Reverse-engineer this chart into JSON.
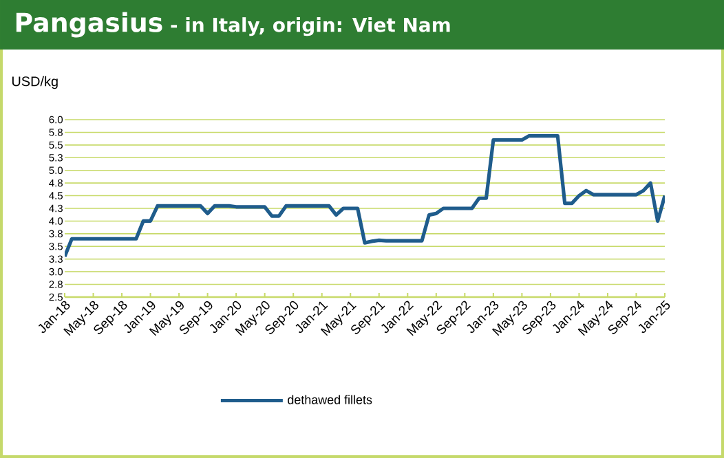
{
  "chart_data": {
    "type": "line",
    "title": "Pangasius",
    "subtitle": "- in Italy, origin: Viet Nam",
    "ylabel": "USD/kg",
    "x": [
      "2018-01",
      "2018-02",
      "2018-03",
      "2018-04",
      "2018-05",
      "2018-06",
      "2018-07",
      "2018-08",
      "2018-09",
      "2018-10",
      "2018-11",
      "2018-12",
      "2019-01",
      "2019-02",
      "2019-03",
      "2019-04",
      "2019-05",
      "2019-06",
      "2019-07",
      "2019-08",
      "2019-09",
      "2019-10",
      "2019-11",
      "2019-12",
      "2020-01",
      "2020-02",
      "2020-03",
      "2020-04",
      "2020-05",
      "2020-06",
      "2020-07",
      "2020-08",
      "2020-09",
      "2020-10",
      "2020-11",
      "2020-12",
      "2021-01",
      "2021-02",
      "2021-03",
      "2021-04",
      "2021-05",
      "2021-06",
      "2021-07",
      "2021-08",
      "2021-09",
      "2021-10",
      "2021-11",
      "2021-12",
      "2022-01",
      "2022-02",
      "2022-03",
      "2022-04",
      "2022-05",
      "2022-06",
      "2022-07",
      "2022-08",
      "2022-09",
      "2022-10",
      "2022-11",
      "2022-12",
      "2023-01",
      "2023-02",
      "2023-03",
      "2023-04",
      "2023-05",
      "2023-06",
      "2023-07",
      "2023-08",
      "2023-09",
      "2023-10",
      "2023-11",
      "2023-12",
      "2024-01",
      "2024-02",
      "2024-03",
      "2024-04",
      "2024-05",
      "2024-06",
      "2024-07",
      "2024-08",
      "2024-09",
      "2024-10",
      "2024-11",
      "2024-12",
      "2025-01"
    ],
    "series": [
      {
        "name": "dethawed fillets",
        "color": "#1f5c8c",
        "values": [
          3.3,
          3.65,
          3.65,
          3.65,
          3.65,
          3.65,
          3.65,
          3.65,
          3.65,
          3.65,
          3.65,
          4.0,
          4.0,
          4.3,
          4.3,
          4.3,
          4.3,
          4.3,
          4.3,
          4.3,
          4.15,
          4.3,
          4.3,
          4.3,
          4.28,
          4.28,
          4.28,
          4.28,
          4.28,
          4.1,
          4.1,
          4.3,
          4.3,
          4.3,
          4.3,
          4.3,
          4.3,
          4.3,
          4.12,
          4.25,
          4.25,
          4.25,
          3.57,
          3.6,
          3.62,
          3.61,
          3.61,
          3.61,
          3.61,
          3.61,
          3.61,
          4.12,
          4.15,
          4.25,
          4.25,
          4.25,
          4.25,
          4.25,
          4.45,
          4.45,
          5.6,
          5.6,
          5.6,
          5.6,
          5.6,
          5.68,
          5.68,
          5.68,
          5.68,
          5.68,
          4.35,
          4.35,
          4.5,
          4.6,
          4.52,
          4.52,
          4.52,
          4.52,
          4.52,
          4.52,
          4.52,
          4.6,
          4.75,
          4.0,
          4.5
        ]
      }
    ],
    "xlim": [
      "2018-01",
      "2025-01"
    ],
    "xticks": [
      {
        "value": "2018-01",
        "label": "Jan-18"
      },
      {
        "value": "2018-05",
        "label": "May-18"
      },
      {
        "value": "2018-09",
        "label": "Sep-18"
      },
      {
        "value": "2019-01",
        "label": "Jan-19"
      },
      {
        "value": "2019-05",
        "label": "May-19"
      },
      {
        "value": "2019-09",
        "label": "Sep-19"
      },
      {
        "value": "2020-01",
        "label": "Jan-20"
      },
      {
        "value": "2020-05",
        "label": "May-20"
      },
      {
        "value": "2020-09",
        "label": "Sep-20"
      },
      {
        "value": "2021-01",
        "label": "Jan-21"
      },
      {
        "value": "2021-05",
        "label": "May-21"
      },
      {
        "value": "2021-09",
        "label": "Sep-21"
      },
      {
        "value": "2022-01",
        "label": "Jan-22"
      },
      {
        "value": "2022-05",
        "label": "May-22"
      },
      {
        "value": "2022-09",
        "label": "Sep-22"
      },
      {
        "value": "2023-01",
        "label": "Jan-23"
      },
      {
        "value": "2023-05",
        "label": "May-23"
      },
      {
        "value": "2023-09",
        "label": "Sep-23"
      },
      {
        "value": "2024-01",
        "label": "Jan-24"
      },
      {
        "value": "2024-05",
        "label": "May-24"
      },
      {
        "value": "2024-09",
        "label": "Sep-24"
      },
      {
        "value": "2025-01",
        "label": "Jan-25"
      }
    ],
    "ylim": [
      2.5,
      6.0
    ],
    "yticks": [
      {
        "value": 2.5,
        "label": "2.5"
      },
      {
        "value": 2.75,
        "label": "2.8"
      },
      {
        "value": 3.0,
        "label": "3.0"
      },
      {
        "value": 3.25,
        "label": "3.3"
      },
      {
        "value": 3.5,
        "label": "3.5"
      },
      {
        "value": 3.75,
        "label": "3.8"
      },
      {
        "value": 4.0,
        "label": "4.0"
      },
      {
        "value": 4.25,
        "label": "4.3"
      },
      {
        "value": 4.5,
        "label": "4.5"
      },
      {
        "value": 4.75,
        "label": "4.8"
      },
      {
        "value": 5.0,
        "label": "5.0"
      },
      {
        "value": 5.25,
        "label": "5.3"
      },
      {
        "value": 5.5,
        "label": "5.5"
      },
      {
        "value": 5.75,
        "label": "5.8"
      },
      {
        "value": 6.0,
        "label": "6.0"
      }
    ],
    "grid": "y",
    "legend": "bottom",
    "marker": "none",
    "line_style": "solid"
  }
}
